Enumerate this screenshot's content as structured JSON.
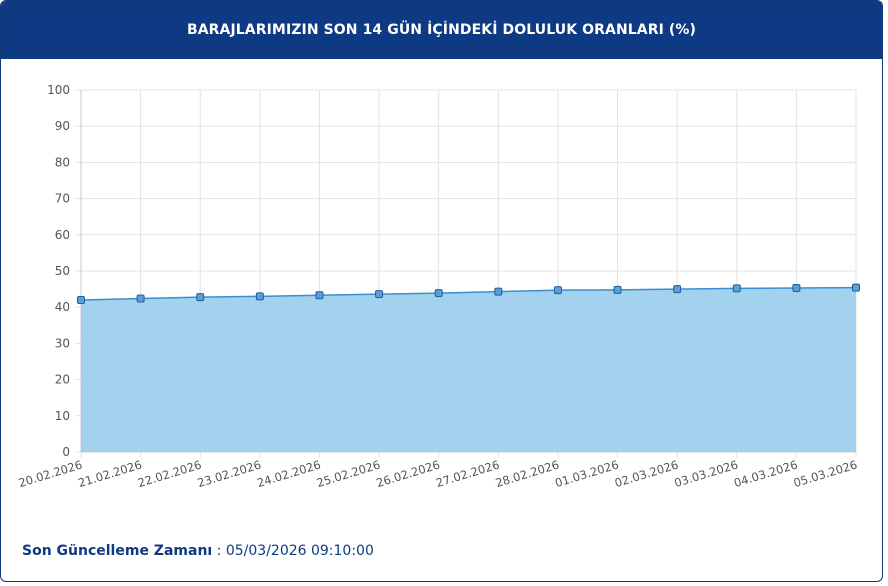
{
  "header": {
    "title": "BARAJLARIMIZIN SON 14 GÜN İÇİNDEKİ DOLULUK ORANLARI (%)"
  },
  "footer": {
    "label": "Son Güncelleme Zamanı",
    "separator": " : ",
    "value": "05/03/2026 09:10:00"
  },
  "chart_data": {
    "type": "area",
    "x": [
      "20.02.2026",
      "21.02.2026",
      "22.02.2026",
      "23.02.2026",
      "24.02.2026",
      "25.02.2026",
      "26.02.2026",
      "27.02.2026",
      "28.02.2026",
      "01.03.2026",
      "02.03.2026",
      "03.03.2026",
      "04.03.2026",
      "05.03.2026"
    ],
    "values": [
      42.0,
      42.4,
      42.8,
      43.0,
      43.3,
      43.6,
      43.9,
      44.3,
      44.7,
      44.8,
      45.0,
      45.2,
      45.3,
      45.4
    ],
    "ylim": [
      0,
      100
    ],
    "yticks": [
      0,
      10,
      20,
      30,
      40,
      50,
      60,
      70,
      80,
      90,
      100
    ],
    "grid": true,
    "colors": {
      "fill": "#9dd0ec",
      "line": "#3a8fcf",
      "marker_fill": "#5b9fd9",
      "marker_stroke": "#1f5d9c",
      "grid": "#e3e3e3",
      "axis": "#c8c8c8",
      "tick": "#555555"
    }
  }
}
